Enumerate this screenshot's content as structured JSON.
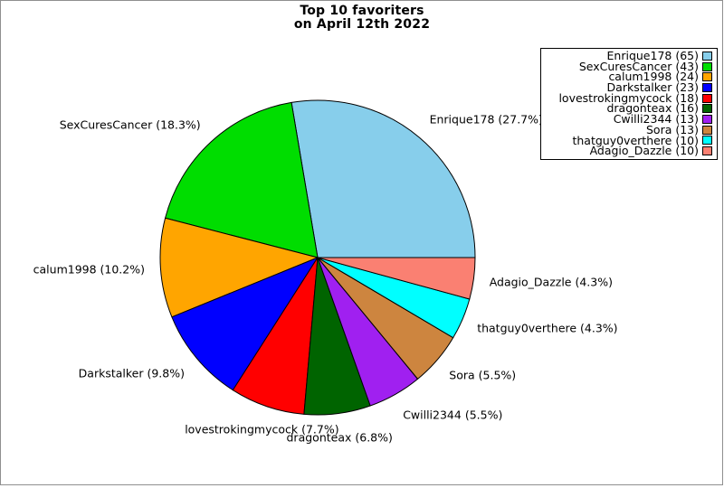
{
  "title": {
    "line1": "Top 10 favoriters",
    "line2": "on April 12th 2022"
  },
  "chart_data": {
    "type": "pie",
    "title": "Top 10 favoriters on April 12th 2022",
    "start_angle_deg": 0,
    "direction": "counterclockwise",
    "legend_position": "upper-right",
    "wedge_outline_color": "#000000",
    "series": [
      {
        "label": "Enrique178",
        "value": 65,
        "percent": 27.7,
        "color": "#87CEEB",
        "slice_label": "Enrique178 (27.7%)",
        "legend_label": "Enrique178 (65)"
      },
      {
        "label": "SexCuresCancer",
        "value": 43,
        "percent": 18.3,
        "color": "#00DD00",
        "slice_label": "SexCuresCancer (18.3%)",
        "legend_label": "SexCuresCancer (43)"
      },
      {
        "label": "calum1998",
        "value": 24,
        "percent": 10.2,
        "color": "#FFA500",
        "slice_label": "calum1998 (10.2%)",
        "legend_label": "calum1998 (24)"
      },
      {
        "label": "Darkstalker",
        "value": 23,
        "percent": 9.8,
        "color": "#0000FF",
        "slice_label": "Darkstalker (9.8%)",
        "legend_label": "Darkstalker (23)"
      },
      {
        "label": "lovestrokingmycock",
        "value": 18,
        "percent": 7.7,
        "color": "#FF0000",
        "slice_label": "lovestrokingmycock (7.7%)",
        "legend_label": "lovestrokingmycock (18)"
      },
      {
        "label": "dragonteax",
        "value": 16,
        "percent": 6.8,
        "color": "#006400",
        "slice_label": "dragonteax (6.8%)",
        "legend_label": "dragonteax (16)"
      },
      {
        "label": "Cwilli2344",
        "value": 13,
        "percent": 5.5,
        "color": "#A020F0",
        "slice_label": "Cwilli2344 (5.5%)",
        "legend_label": "Cwilli2344 (13)"
      },
      {
        "label": "Sora",
        "value": 13,
        "percent": 5.5,
        "color": "#CD853F",
        "slice_label": "Sora (5.5%)",
        "legend_label": "Sora (13)"
      },
      {
        "label": "thatguy0verthere",
        "value": 10,
        "percent": 4.3,
        "color": "#00FFFF",
        "slice_label": "thatguy0verthere (4.3%)",
        "legend_label": "thatguy0verthere (10)"
      },
      {
        "label": "Adagio_Dazzle",
        "value": 10,
        "percent": 4.3,
        "color": "#FA8072",
        "slice_label": "Adagio_Dazzle (4.3%)",
        "legend_label": "Adagio_Dazzle (10)"
      }
    ]
  },
  "colors": {
    "background": "#FFFFFF",
    "canvas_border": "#8F8F8F",
    "text": "#000000"
  }
}
